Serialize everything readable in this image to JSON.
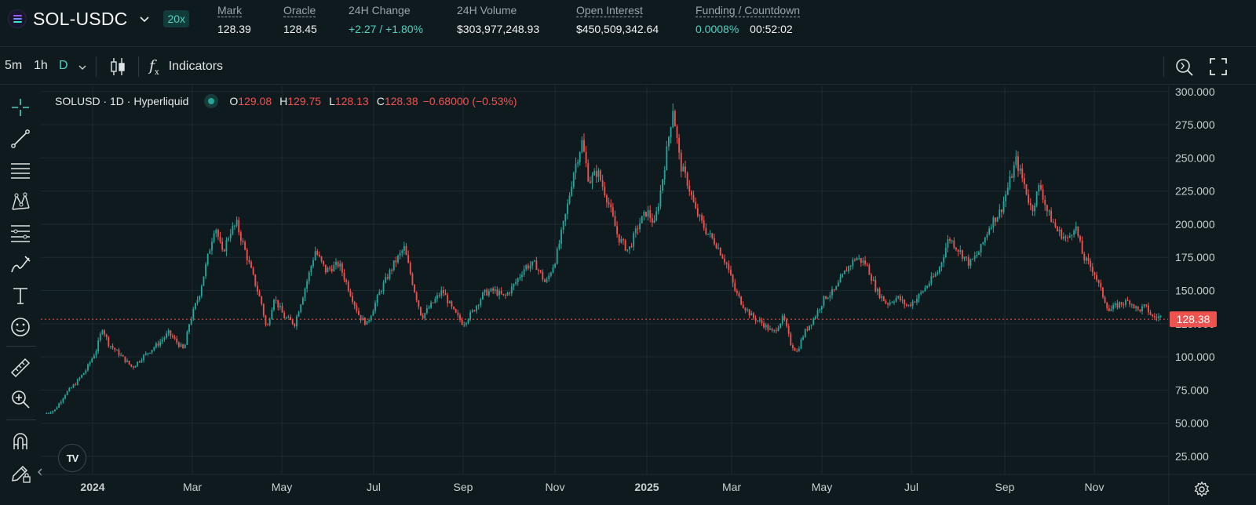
{
  "header": {
    "symbol": "SOL-USDC",
    "leverage": "20x",
    "stats": [
      {
        "label": "Mark",
        "value": "128.39",
        "underline": true
      },
      {
        "label": "Oracle",
        "value": "128.45",
        "underline": true
      },
      {
        "label": "24H Change",
        "value": "+2.27 / +1.80%",
        "underline": false
      },
      {
        "label": "24H Volume",
        "value": "$303,977,248.93",
        "underline": false
      },
      {
        "label": "Open Interest",
        "value": "$450,509,342.64",
        "underline": true
      },
      {
        "label": "Funding / Countdown",
        "value": "0.0008%",
        "value2": "00:52:02",
        "underline": true
      }
    ]
  },
  "toolbar": {
    "timeframes": [
      "5m",
      "1h",
      "D"
    ],
    "active_timeframe": "D",
    "indicators_label": "Indicators"
  },
  "legend": {
    "title": "SOLUSD · 1D · Hyperliquid",
    "o_label": "O",
    "o": "129.08",
    "h_label": "H",
    "h": "129.75",
    "l_label": "L",
    "l": "128.13",
    "c_label": "C",
    "c": "128.38",
    "change": "−0.68000 (−0.53%)"
  },
  "colors": {
    "up": "#26a69a",
    "down": "#ef5350",
    "background": "#0f1a1f",
    "grid": "#1c2a31",
    "accent": "#50d2c1"
  },
  "chart_data": {
    "type": "candlestick",
    "title": "SOLUSD · 1D · Hyperliquid",
    "y_ticks": [
      "300.000",
      "275.000",
      "250.000",
      "225.000",
      "200.000",
      "175.000",
      "150.000",
      "125.000",
      "100.000",
      "75.000",
      "50.000",
      "25.000"
    ],
    "y_tick_values": [
      300,
      275,
      250,
      225,
      200,
      175,
      150,
      125,
      100,
      75,
      50,
      25
    ],
    "ylim": [
      12,
      304
    ],
    "x_ticks": [
      {
        "label": "2024",
        "t": 0.066,
        "bold": true
      },
      {
        "label": "Mar",
        "t": 0.165
      },
      {
        "label": "May",
        "t": 0.273
      },
      {
        "label": "Jul",
        "t": 0.38
      },
      {
        "label": "Sep",
        "t": 0.49
      },
      {
        "label": "Nov",
        "t": 0.598
      },
      {
        "label": "2025",
        "t": 0.708,
        "bold": true
      },
      {
        "label": "Mar",
        "t": 0.816
      },
      {
        "label": "May",
        "t": 0.924
      },
      {
        "label": "Jul",
        "t": 1.032
      },
      {
        "label": "Sep",
        "t": 1.141
      },
      {
        "label": "Nov",
        "t": 1.249
      }
    ],
    "x_range_days": 730,
    "last_price": "128.38",
    "last_price_value": 128.38,
    "close_anchors": [
      [
        0,
        57
      ],
      [
        10,
        60
      ],
      [
        20,
        72
      ],
      [
        30,
        80
      ],
      [
        40,
        90
      ],
      [
        50,
        105
      ],
      [
        56,
        122
      ],
      [
        62,
        110
      ],
      [
        75,
        100
      ],
      [
        85,
        92
      ],
      [
        95,
        100
      ],
      [
        110,
        110
      ],
      [
        120,
        118
      ],
      [
        135,
        105
      ],
      [
        140,
        125
      ],
      [
        150,
        148
      ],
      [
        160,
        182
      ],
      [
        165,
        200
      ],
      [
        172,
        178
      ],
      [
        180,
        195
      ],
      [
        186,
        200
      ],
      [
        200,
        165
      ],
      [
        210,
        140
      ],
      [
        215,
        120
      ],
      [
        222,
        145
      ],
      [
        232,
        130
      ],
      [
        242,
        125
      ],
      [
        255,
        160
      ],
      [
        262,
        180
      ],
      [
        272,
        165
      ],
      [
        285,
        170
      ],
      [
        295,
        150
      ],
      [
        305,
        130
      ],
      [
        312,
        125
      ],
      [
        325,
        150
      ],
      [
        338,
        170
      ],
      [
        348,
        182
      ],
      [
        358,
        150
      ],
      [
        365,
        130
      ],
      [
        375,
        140
      ],
      [
        385,
        150
      ],
      [
        395,
        135
      ],
      [
        405,
        125
      ],
      [
        415,
        135
      ],
      [
        425,
        148
      ],
      [
        435,
        150
      ],
      [
        445,
        145
      ],
      [
        455,
        155
      ],
      [
        465,
        168
      ],
      [
        475,
        170
      ],
      [
        485,
        155
      ],
      [
        495,
        175
      ],
      [
        505,
        210
      ],
      [
        512,
        240
      ],
      [
        520,
        262
      ],
      [
        527,
        232
      ],
      [
        535,
        240
      ],
      [
        545,
        218
      ],
      [
        555,
        190
      ],
      [
        565,
        180
      ],
      [
        575,
        200
      ],
      [
        583,
        210
      ],
      [
        590,
        200
      ],
      [
        595,
        220
      ],
      [
        602,
        255
      ],
      [
        608,
        288
      ],
      [
        615,
        245
      ],
      [
        622,
        232
      ],
      [
        630,
        210
      ],
      [
        640,
        195
      ],
      [
        650,
        185
      ],
      [
        660,
        170
      ],
      [
        668,
        150
      ],
      [
        675,
        140
      ],
      [
        685,
        130
      ],
      [
        695,
        125
      ],
      [
        705,
        118
      ],
      [
        715,
        130
      ],
      [
        722,
        110
      ],
      [
        728,
        104
      ],
      [
        735,
        118
      ],
      [
        745,
        130
      ],
      [
        755,
        145
      ],
      [
        765,
        150
      ],
      [
        775,
        165
      ],
      [
        785,
        175
      ],
      [
        795,
        170
      ],
      [
        805,
        150
      ],
      [
        815,
        140
      ],
      [
        825,
        145
      ],
      [
        835,
        138
      ],
      [
        845,
        145
      ],
      [
        855,
        155
      ],
      [
        865,
        165
      ],
      [
        875,
        190
      ],
      [
        885,
        180
      ],
      [
        895,
        170
      ],
      [
        905,
        180
      ],
      [
        915,
        200
      ],
      [
        925,
        210
      ],
      [
        935,
        235
      ],
      [
        940,
        248
      ],
      [
        948,
        230
      ],
      [
        955,
        210
      ],
      [
        963,
        230
      ],
      [
        970,
        210
      ],
      [
        980,
        195
      ],
      [
        990,
        188
      ],
      [
        997,
        200
      ],
      [
        1005,
        175
      ],
      [
        1015,
        165
      ],
      [
        1022,
        150
      ],
      [
        1030,
        135
      ],
      [
        1040,
        140
      ],
      [
        1050,
        142
      ],
      [
        1058,
        135
      ],
      [
        1065,
        138
      ],
      [
        1072,
        130
      ]
    ],
    "total_days": 1080
  }
}
